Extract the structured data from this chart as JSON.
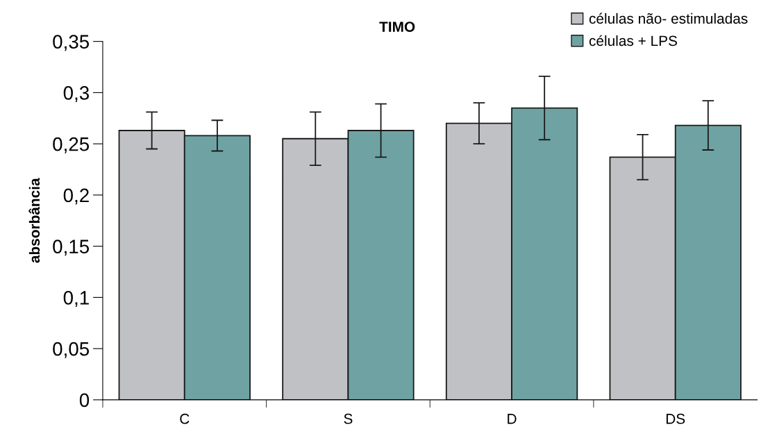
{
  "chart_data": {
    "type": "bar",
    "title": "TIMO",
    "ylabel": "absorbância",
    "categories": [
      "C",
      "S",
      "D",
      "DS"
    ],
    "series": [
      {
        "name": "células não- estimuladas",
        "color": "#c0c1c5",
        "values": [
          0.263,
          0.255,
          0.27,
          0.237
        ],
        "errors": [
          0.018,
          0.026,
          0.02,
          0.022
        ]
      },
      {
        "name": "células + LPS",
        "color": "#6fa3a3",
        "values": [
          0.258,
          0.263,
          0.285,
          0.268
        ],
        "errors": [
          0.015,
          0.026,
          0.031,
          0.024
        ]
      }
    ],
    "ylim": [
      0,
      0.35
    ],
    "yticks": [
      {
        "value": 0,
        "label": "0"
      },
      {
        "value": 0.05,
        "label": "0,05"
      },
      {
        "value": 0.1,
        "label": "0,1"
      },
      {
        "value": 0.15,
        "label": "0,15"
      },
      {
        "value": 0.2,
        "label": "0,2"
      },
      {
        "value": 0.25,
        "label": "0,25"
      },
      {
        "value": 0.3,
        "label": "0,3"
      },
      {
        "value": 0.35,
        "label": "0,35"
      }
    ],
    "grid": false,
    "legend": "top right"
  }
}
